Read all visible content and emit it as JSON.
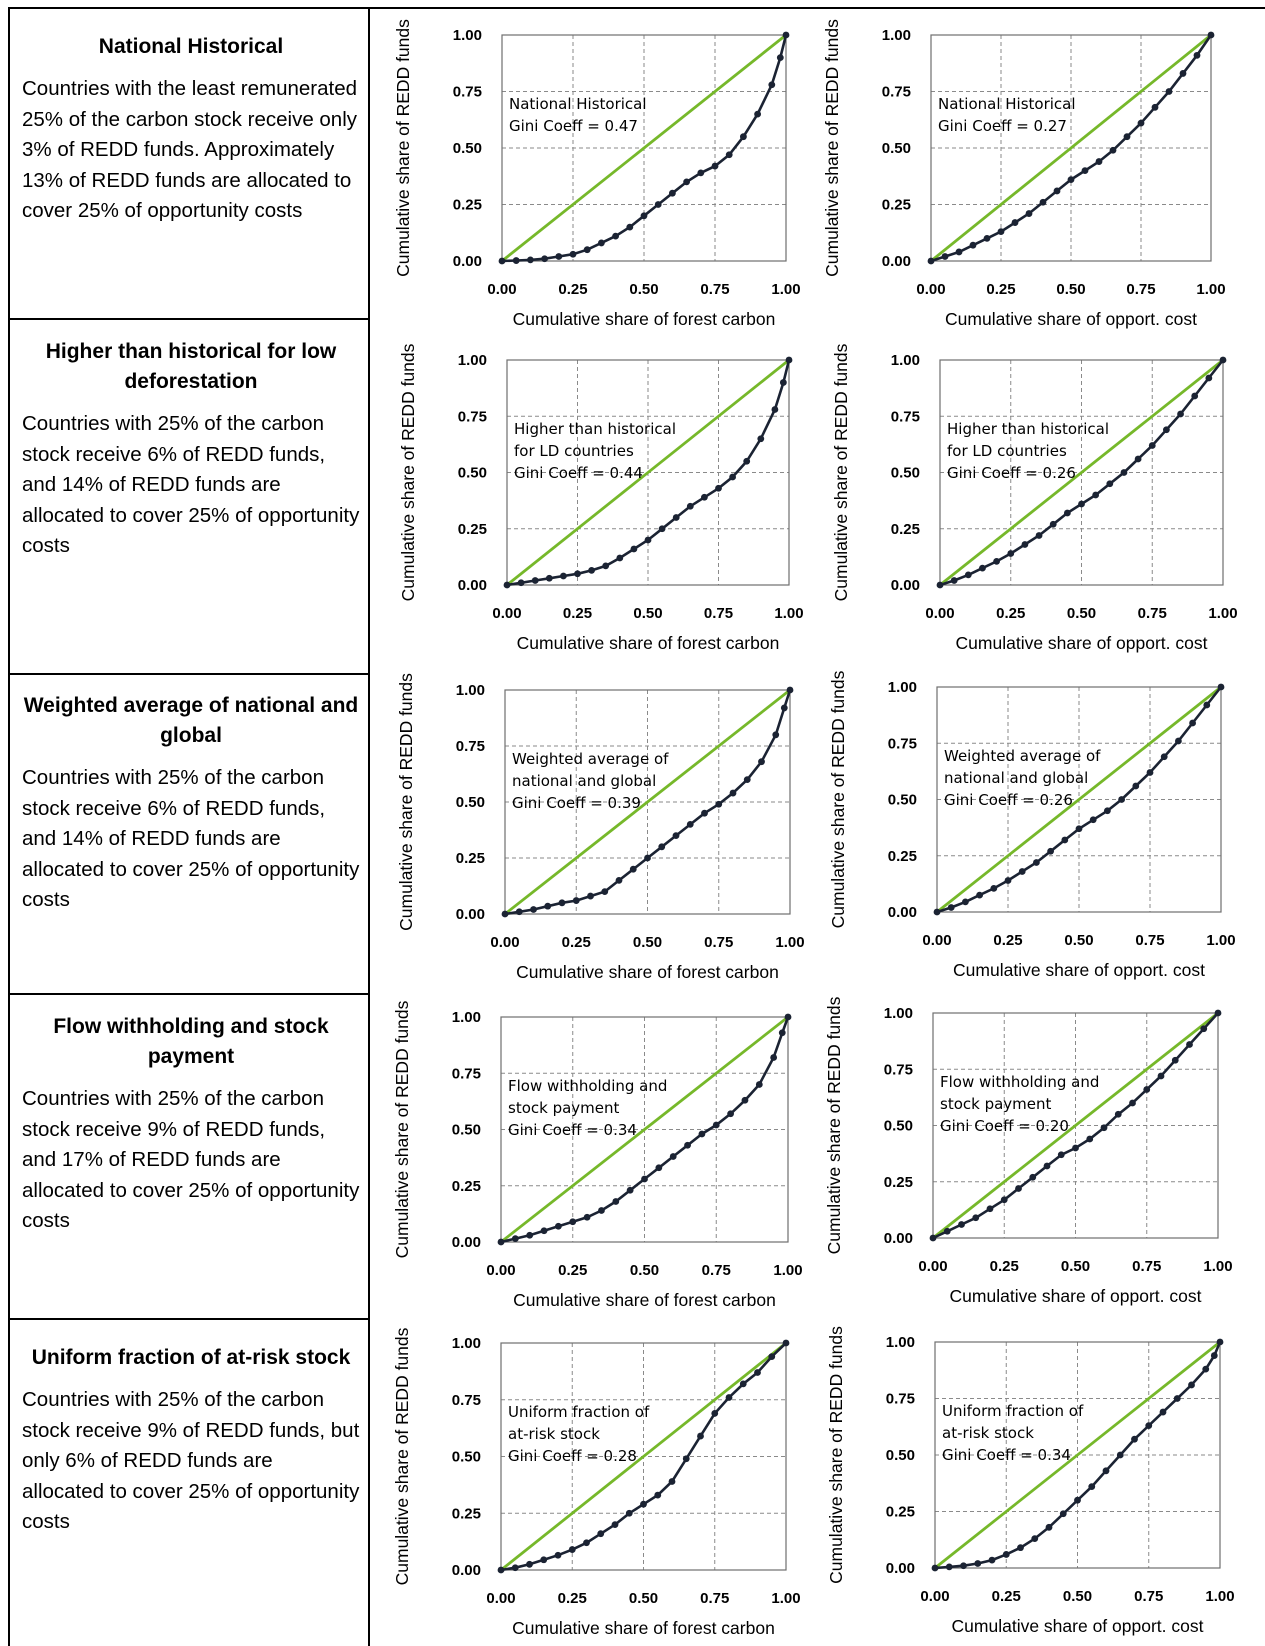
{
  "scenarios": [
    {
      "title": "National Historical",
      "body": "Countries with the least remunerated 25% of the carbon stock receive only 3% of REDD funds. Approximately 13% of REDD funds are allocated to cover 25% of opportunity costs"
    },
    {
      "title": "Higher than historical for low deforestation",
      "body": "Countries with 25% of the carbon stock receive 6% of REDD funds, and 14% of REDD funds are allocated to cover 25% of opportunity costs"
    },
    {
      "title": "Weighted average of national and global",
      "body": "Countries with 25% of the carbon stock receive 6% of REDD funds, and 14% of REDD funds are allocated to cover 25% of opportunity costs"
    },
    {
      "title": "Flow withholding and stock payment",
      "body": "Countries with 25% of the carbon stock receive 9% of REDD funds, and 17% of REDD funds are allocated to cover 25% of opportunity costs"
    },
    {
      "title": "Uniform fraction of at-risk stock",
      "body": "Countries with 25% of the carbon stock receive 9% of REDD funds, but only 6% of REDD funds are allocated to cover 25% of opportunity costs"
    }
  ],
  "colors": {
    "equality_line": "#76b82a",
    "lorenz_curve": "#1b2333",
    "gridline": "#8a8a8a",
    "border": "#000000"
  },
  "chart_data": [
    {
      "type": "line",
      "scenario": "National Historical",
      "measure": "carbon",
      "xlabel": "Cumulative share of forest carbon",
      "ylabel": "Cumulative share of REDD funds",
      "xlim": [
        0,
        1
      ],
      "ylim": [
        0,
        1
      ],
      "xticks": [
        "0.00",
        "0.25",
        "0.50",
        "0.75",
        "1.00"
      ],
      "yticks": [
        "0.00",
        "0.25",
        "0.50",
        "0.75",
        "1.00"
      ],
      "grid": true,
      "annotation": [
        "National Historical",
        "Gini Coeff = 0.47"
      ],
      "series": [
        {
          "style": "equality",
          "x": [
            0,
            1
          ],
          "y": [
            0,
            1
          ]
        },
        {
          "style": "lorenz",
          "x": [
            0,
            0.05,
            0.1,
            0.15,
            0.2,
            0.25,
            0.3,
            0.35,
            0.4,
            0.45,
            0.5,
            0.55,
            0.6,
            0.65,
            0.7,
            0.75,
            0.8,
            0.85,
            0.9,
            0.95,
            0.98,
            1.0
          ],
          "y": [
            0,
            0.002,
            0.005,
            0.01,
            0.02,
            0.03,
            0.05,
            0.08,
            0.11,
            0.15,
            0.2,
            0.25,
            0.3,
            0.35,
            0.39,
            0.42,
            0.47,
            0.55,
            0.65,
            0.78,
            0.9,
            1.0
          ]
        }
      ]
    },
    {
      "type": "line",
      "scenario": "National Historical",
      "measure": "opportunity cost",
      "xlabel": "Cumulative share of opport. cost",
      "ylabel": "Cumulative share of REDD funds",
      "xlim": [
        0,
        1
      ],
      "ylim": [
        0,
        1
      ],
      "xticks": [
        "0.00",
        "0.25",
        "0.50",
        "0.75",
        "1.00"
      ],
      "yticks": [
        "0.00",
        "0.25",
        "0.50",
        "0.75",
        "1.00"
      ],
      "grid": true,
      "annotation": [
        "National Historical",
        "Gini Coeff = 0.27"
      ],
      "series": [
        {
          "style": "equality",
          "x": [
            0,
            1
          ],
          "y": [
            0,
            1
          ]
        },
        {
          "style": "lorenz",
          "x": [
            0,
            0.05,
            0.1,
            0.15,
            0.2,
            0.25,
            0.3,
            0.35,
            0.4,
            0.45,
            0.5,
            0.55,
            0.6,
            0.65,
            0.7,
            0.75,
            0.8,
            0.85,
            0.9,
            0.95,
            1.0
          ],
          "y": [
            0,
            0.02,
            0.04,
            0.07,
            0.1,
            0.13,
            0.17,
            0.21,
            0.26,
            0.31,
            0.36,
            0.4,
            0.44,
            0.49,
            0.55,
            0.61,
            0.68,
            0.75,
            0.83,
            0.91,
            1.0
          ]
        }
      ]
    },
    {
      "type": "line",
      "scenario": "Higher than historical for low deforestation",
      "measure": "carbon",
      "xlabel": "Cumulative share of forest carbon",
      "ylabel": "Cumulative share of REDD funds",
      "xlim": [
        0,
        1
      ],
      "ylim": [
        0,
        1
      ],
      "xticks": [
        "0.00",
        "0.25",
        "0.50",
        "0.75",
        "1.00"
      ],
      "yticks": [
        "0.00",
        "0.25",
        "0.50",
        "0.75",
        "1.00"
      ],
      "grid": true,
      "annotation": [
        "Higher than historical",
        "for LD countries",
        "Gini Coeff = 0.44"
      ],
      "series": [
        {
          "style": "equality",
          "x": [
            0,
            1
          ],
          "y": [
            0,
            1
          ]
        },
        {
          "style": "lorenz",
          "x": [
            0,
            0.05,
            0.1,
            0.15,
            0.2,
            0.25,
            0.3,
            0.35,
            0.4,
            0.45,
            0.5,
            0.55,
            0.6,
            0.65,
            0.7,
            0.75,
            0.8,
            0.85,
            0.9,
            0.95,
            0.98,
            1.0
          ],
          "y": [
            0,
            0.01,
            0.02,
            0.03,
            0.04,
            0.05,
            0.065,
            0.085,
            0.12,
            0.16,
            0.2,
            0.25,
            0.3,
            0.35,
            0.39,
            0.43,
            0.48,
            0.55,
            0.65,
            0.78,
            0.9,
            1.0
          ]
        }
      ]
    },
    {
      "type": "line",
      "scenario": "Higher than historical for low deforestation",
      "measure": "opportunity cost",
      "xlabel": "Cumulative share of opport. cost",
      "ylabel": "Cumulative share of REDD funds",
      "xlim": [
        0,
        1
      ],
      "ylim": [
        0,
        1
      ],
      "xticks": [
        "0.00",
        "0.25",
        "0.50",
        "0.75",
        "1.00"
      ],
      "yticks": [
        "0.00",
        "0.25",
        "0.50",
        "0.75",
        "1.00"
      ],
      "grid": true,
      "annotation": [
        "Higher than historical",
        "for LD countries",
        "Gini Coeff = 0.26"
      ],
      "series": [
        {
          "style": "equality",
          "x": [
            0,
            1
          ],
          "y": [
            0,
            1
          ]
        },
        {
          "style": "lorenz",
          "x": [
            0,
            0.05,
            0.1,
            0.15,
            0.2,
            0.25,
            0.3,
            0.35,
            0.4,
            0.45,
            0.5,
            0.55,
            0.6,
            0.65,
            0.7,
            0.75,
            0.8,
            0.85,
            0.9,
            0.95,
            1.0
          ],
          "y": [
            0,
            0.02,
            0.045,
            0.075,
            0.105,
            0.14,
            0.18,
            0.22,
            0.27,
            0.32,
            0.36,
            0.4,
            0.45,
            0.5,
            0.56,
            0.62,
            0.69,
            0.76,
            0.84,
            0.92,
            1.0
          ]
        }
      ]
    },
    {
      "type": "line",
      "scenario": "Weighted average of national and global",
      "measure": "carbon",
      "xlabel": "Cumulative share of forest carbon",
      "ylabel": "Cumulative share of REDD funds",
      "xlim": [
        0,
        1
      ],
      "ylim": [
        0,
        1
      ],
      "xticks": [
        "0.00",
        "0.25",
        "0.50",
        "0.75",
        "1.00"
      ],
      "yticks": [
        "0.00",
        "0.25",
        "0.50",
        "0.75",
        "1.00"
      ],
      "grid": true,
      "annotation": [
        "Weighted average of",
        "national and global",
        "Gini Coeff = 0.39"
      ],
      "series": [
        {
          "style": "equality",
          "x": [
            0,
            1
          ],
          "y": [
            0,
            1
          ]
        },
        {
          "style": "lorenz",
          "x": [
            0,
            0.05,
            0.1,
            0.15,
            0.2,
            0.25,
            0.3,
            0.35,
            0.4,
            0.45,
            0.5,
            0.55,
            0.6,
            0.65,
            0.7,
            0.75,
            0.8,
            0.85,
            0.9,
            0.95,
            0.98,
            1.0
          ],
          "y": [
            0,
            0.01,
            0.02,
            0.035,
            0.05,
            0.06,
            0.08,
            0.1,
            0.15,
            0.2,
            0.25,
            0.3,
            0.35,
            0.4,
            0.45,
            0.49,
            0.54,
            0.6,
            0.68,
            0.8,
            0.92,
            1.0
          ]
        }
      ]
    },
    {
      "type": "line",
      "scenario": "Weighted average of national and global",
      "measure": "opportunity cost",
      "xlabel": "Cumulative share of opport. cost",
      "ylabel": "Cumulative share of REDD funds",
      "xlim": [
        0,
        1
      ],
      "ylim": [
        0,
        1
      ],
      "xticks": [
        "0.00",
        "0.25",
        "0.50",
        "0.75",
        "1.00"
      ],
      "yticks": [
        "0.00",
        "0.25",
        "0.50",
        "0.75",
        "1.00"
      ],
      "grid": true,
      "annotation": [
        "Weighted average of",
        "national and global",
        "Gini Coeff = 0.26"
      ],
      "series": [
        {
          "style": "equality",
          "x": [
            0,
            1
          ],
          "y": [
            0,
            1
          ]
        },
        {
          "style": "lorenz",
          "x": [
            0,
            0.05,
            0.1,
            0.15,
            0.2,
            0.25,
            0.3,
            0.35,
            0.4,
            0.45,
            0.5,
            0.55,
            0.6,
            0.65,
            0.7,
            0.75,
            0.8,
            0.85,
            0.9,
            0.95,
            1.0
          ],
          "y": [
            0,
            0.02,
            0.045,
            0.075,
            0.105,
            0.14,
            0.18,
            0.22,
            0.27,
            0.32,
            0.37,
            0.41,
            0.45,
            0.5,
            0.56,
            0.62,
            0.69,
            0.76,
            0.84,
            0.92,
            1.0
          ]
        }
      ]
    },
    {
      "type": "line",
      "scenario": "Flow withholding and stock payment",
      "measure": "carbon",
      "xlabel": "Cumulative share of forest carbon",
      "ylabel": "Cumulative share of REDD funds",
      "xlim": [
        0,
        1
      ],
      "ylim": [
        0,
        1
      ],
      "xticks": [
        "0.00",
        "0.25",
        "0.50",
        "0.75",
        "1.00"
      ],
      "yticks": [
        "0.00",
        "0.25",
        "0.50",
        "0.75",
        "1.00"
      ],
      "grid": true,
      "annotation": [
        "Flow withholding and",
        "stock payment",
        "Gini Coeff = 0.34"
      ],
      "series": [
        {
          "style": "equality",
          "x": [
            0,
            1
          ],
          "y": [
            0,
            1
          ]
        },
        {
          "style": "lorenz",
          "x": [
            0,
            0.05,
            0.1,
            0.15,
            0.2,
            0.25,
            0.3,
            0.35,
            0.4,
            0.45,
            0.5,
            0.55,
            0.6,
            0.65,
            0.7,
            0.75,
            0.8,
            0.85,
            0.9,
            0.95,
            0.98,
            1.0
          ],
          "y": [
            0,
            0.015,
            0.03,
            0.05,
            0.07,
            0.09,
            0.11,
            0.14,
            0.18,
            0.23,
            0.28,
            0.33,
            0.38,
            0.43,
            0.48,
            0.52,
            0.57,
            0.63,
            0.7,
            0.82,
            0.93,
            1.0
          ]
        }
      ]
    },
    {
      "type": "line",
      "scenario": "Flow withholding and stock payment",
      "measure": "opportunity cost",
      "xlabel": "Cumulative share of opport. cost",
      "ylabel": "Cumulative share of REDD funds",
      "xlim": [
        0,
        1
      ],
      "ylim": [
        0,
        1
      ],
      "xticks": [
        "0.00",
        "0.25",
        "0.50",
        "0.75",
        "1.00"
      ],
      "yticks": [
        "0.00",
        "0.25",
        "0.50",
        "0.75",
        "1.00"
      ],
      "grid": true,
      "annotation": [
        "Flow withholding and",
        "stock payment",
        "Gini Coeff = 0.20"
      ],
      "series": [
        {
          "style": "equality",
          "x": [
            0,
            1
          ],
          "y": [
            0,
            1
          ]
        },
        {
          "style": "lorenz",
          "x": [
            0,
            0.05,
            0.1,
            0.15,
            0.2,
            0.25,
            0.3,
            0.35,
            0.4,
            0.45,
            0.5,
            0.55,
            0.6,
            0.65,
            0.7,
            0.75,
            0.8,
            0.85,
            0.9,
            0.95,
            1.0
          ],
          "y": [
            0,
            0.03,
            0.06,
            0.09,
            0.13,
            0.17,
            0.22,
            0.27,
            0.32,
            0.37,
            0.4,
            0.44,
            0.49,
            0.55,
            0.6,
            0.66,
            0.72,
            0.79,
            0.86,
            0.93,
            1.0
          ]
        }
      ]
    },
    {
      "type": "line",
      "scenario": "Uniform fraction of at-risk stock",
      "measure": "carbon",
      "xlabel": "Cumulative share of forest carbon",
      "ylabel": "Cumulative share of REDD funds",
      "xlim": [
        0,
        1
      ],
      "ylim": [
        0,
        1
      ],
      "xticks": [
        "0.00",
        "0.25",
        "0.50",
        "0.75",
        "1.00"
      ],
      "yticks": [
        "0.00",
        "0.25",
        "0.50",
        "0.75",
        "1.00"
      ],
      "grid": true,
      "annotation": [
        "Uniform fraction of",
        "at-risk stock",
        "Gini Coeff = 0.28"
      ],
      "series": [
        {
          "style": "equality",
          "x": [
            0,
            1
          ],
          "y": [
            0,
            1
          ]
        },
        {
          "style": "lorenz",
          "x": [
            0,
            0.05,
            0.1,
            0.15,
            0.2,
            0.25,
            0.3,
            0.35,
            0.4,
            0.45,
            0.5,
            0.55,
            0.6,
            0.65,
            0.7,
            0.75,
            0.8,
            0.85,
            0.9,
            0.95,
            1.0
          ],
          "y": [
            0,
            0.01,
            0.025,
            0.045,
            0.065,
            0.09,
            0.12,
            0.16,
            0.2,
            0.25,
            0.29,
            0.33,
            0.39,
            0.49,
            0.59,
            0.69,
            0.76,
            0.82,
            0.87,
            0.94,
            1.0
          ]
        }
      ]
    },
    {
      "type": "line",
      "scenario": "Uniform fraction of at-risk stock",
      "measure": "opportunity cost",
      "xlabel": "Cumulative share of opport. cost",
      "ylabel": "Cumulative share of REDD funds",
      "xlim": [
        0,
        1
      ],
      "ylim": [
        0,
        1
      ],
      "xticks": [
        "0.00",
        "0.25",
        "0.50",
        "0.75",
        "1.00"
      ],
      "yticks": [
        "0.00",
        "0.25",
        "0.50",
        "0.75",
        "1.00"
      ],
      "grid": true,
      "annotation": [
        "Uniform fraction of",
        "at-risk stock",
        "Gini Coeff = 0.34"
      ],
      "series": [
        {
          "style": "equality",
          "x": [
            0,
            1
          ],
          "y": [
            0,
            1
          ]
        },
        {
          "style": "lorenz",
          "x": [
            0,
            0.05,
            0.1,
            0.15,
            0.2,
            0.25,
            0.3,
            0.35,
            0.4,
            0.45,
            0.5,
            0.55,
            0.6,
            0.65,
            0.7,
            0.75,
            0.8,
            0.85,
            0.9,
            0.95,
            0.98,
            1.0
          ],
          "y": [
            0,
            0.005,
            0.01,
            0.02,
            0.035,
            0.06,
            0.09,
            0.13,
            0.18,
            0.24,
            0.3,
            0.36,
            0.43,
            0.5,
            0.57,
            0.63,
            0.69,
            0.75,
            0.81,
            0.88,
            0.94,
            1.0
          ]
        }
      ]
    }
  ]
}
